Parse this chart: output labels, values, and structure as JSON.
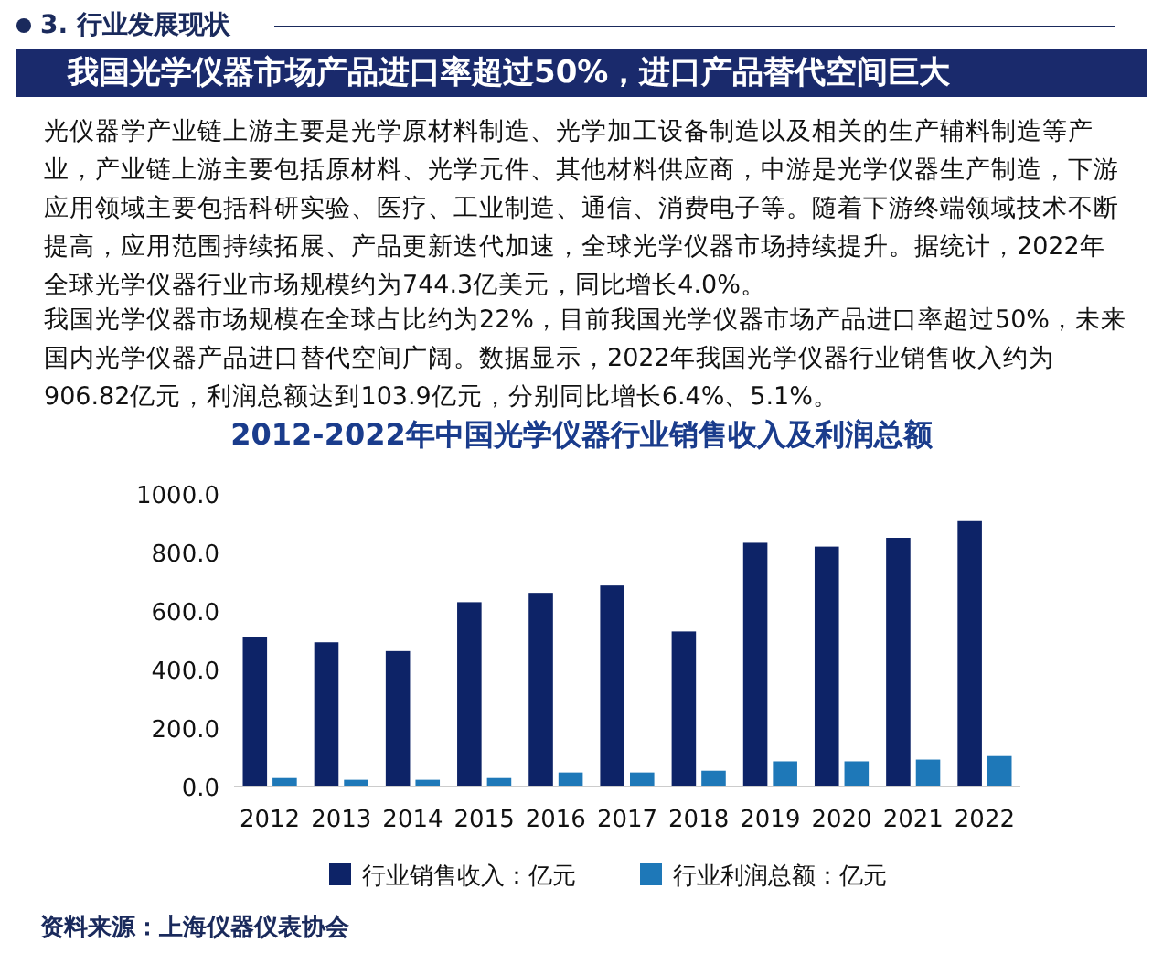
{
  "chart_data": {
    "type": "bar",
    "title": "我国光学仪器市场产品进口率超过50%，进口产品替代空间巨大",
    "subtitle": "2012-2022年中国光学仪器行业销售收入及利润总额",
    "categories": [
      "2012",
      "2013",
      "2014",
      "2015",
      "2016",
      "2017",
      "2018",
      "2019",
      "2020",
      "2021",
      "2022"
    ],
    "series": [
      {
        "name": "行业销售收入：亿元",
        "color": "#0d2367",
        "values": [
          511,
          493,
          463,
          630,
          662,
          687,
          530,
          833,
          820,
          850,
          907
        ]
      },
      {
        "name": "行业利润总额：亿元",
        "color": "#1e78b8",
        "values": [
          29,
          23,
          23,
          29,
          48,
          48,
          54,
          86,
          86,
          92,
          104
        ]
      }
    ],
    "ylim": [
      0,
      1000
    ],
    "yticks": [
      {
        "value": 0,
        "label": "0.0"
      },
      {
        "value": 200,
        "label": "200.0"
      },
      {
        "value": 400,
        "label": "400.0"
      },
      {
        "value": 600,
        "label": "600.0"
      },
      {
        "value": 800,
        "label": "800.0"
      },
      {
        "value": 1000,
        "label": "1000.0"
      }
    ],
    "grid": false,
    "legend": "bottom",
    "annotations": [
      "3. 行业发展现状",
      "光仪器学产业链上游主要是光学原材料制造、光学加工设备制造以及相关的生产辅料制造等产业，产业链上游主要包括原材料、光学元件、其他材料供应商，中游是光学仪器生产制造，下游应用领域主要包括科研实验、医疗、工业制造、通信、消费电子等。随着下游终端领域技术不断提高，应用范围持续拓展、产品更新迭代加速，全球光学仪器市场持续提升。据统计，2022年全球光学仪器行业市场规模约为744.3亿美元，同比增长4.0%。",
      "我国光学仪器市场规模在全球占比约为22%，目前我国光学仪器市场产品进口率超过50%，未来国内光学仪器产品进口替代空间广阔。数据显示，2022年我国光学仪器行业销售收入约为906.82亿元，利润总额达到103.9亿元，分别同比增长6.4%、5.1%。",
      "资料来源：上海仪器仪表协会"
    ]
  }
}
